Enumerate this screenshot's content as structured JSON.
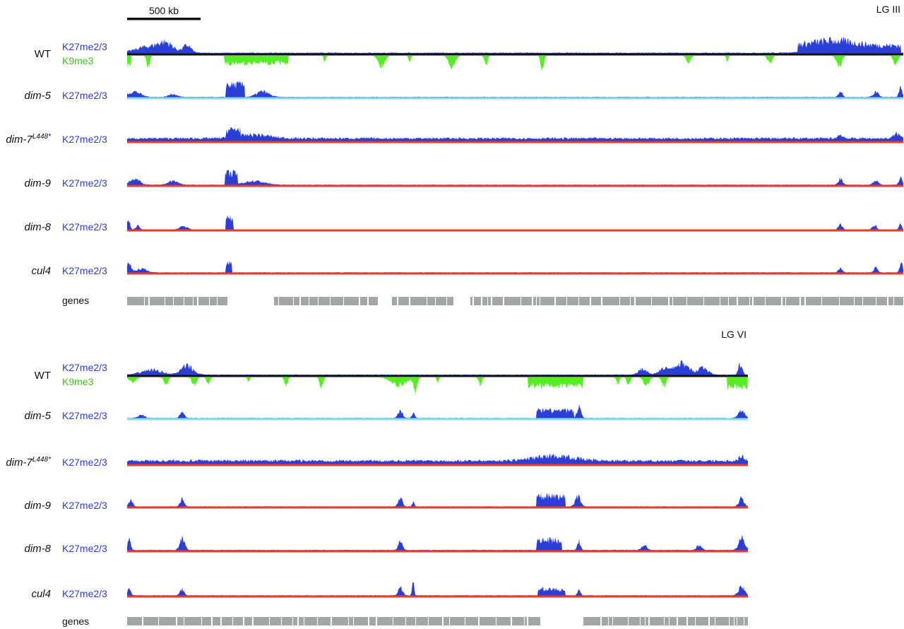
{
  "figure": {
    "scale_bar_label": "500 kb",
    "colors": {
      "k27": "#2b3fd6",
      "k9": "#55ee22",
      "baseline_wt": "#111111",
      "baseline_dim5": "#86d8f2",
      "baseline_red": "#ef3a2a",
      "genes": "#a2a8a5",
      "label_black": "#111111"
    },
    "panels": [
      {
        "name": "LG III",
        "tracks": [
          {
            "strain": "WT",
            "superscript": "",
            "marks": [
              "K27me2/3",
              "K9me3"
            ],
            "baseline": "wt"
          },
          {
            "strain": "dim-5",
            "superscript": "",
            "marks": [
              "K27me2/3"
            ],
            "baseline": "dim5"
          },
          {
            "strain": "dim-7",
            "superscript": "L448*",
            "marks": [
              "K27me2/3"
            ],
            "baseline": "red"
          },
          {
            "strain": "dim-9",
            "superscript": "",
            "marks": [
              "K27me2/3"
            ],
            "baseline": "red"
          },
          {
            "strain": "dim-8",
            "superscript": "",
            "marks": [
              "K27me2/3"
            ],
            "baseline": "red"
          },
          {
            "strain": "cul4",
            "superscript": "",
            "marks": [
              "K27me2/3"
            ],
            "baseline": "red"
          }
        ],
        "genes_label": "genes"
      },
      {
        "name": "LG VI",
        "tracks": [
          {
            "strain": "WT",
            "superscript": "",
            "marks": [
              "K27me2/3",
              "K9me3"
            ],
            "baseline": "wt"
          },
          {
            "strain": "dim-5",
            "superscript": "",
            "marks": [
              "K27me2/3"
            ],
            "baseline": "dim5"
          },
          {
            "strain": "dim-7",
            "superscript": "L448*",
            "marks": [
              "K27me2/3"
            ],
            "baseline": "red"
          },
          {
            "strain": "dim-9",
            "superscript": "",
            "marks": [
              "K27me2/3"
            ],
            "baseline": "red"
          },
          {
            "strain": "dim-8",
            "superscript": "",
            "marks": [
              "K27me2/3"
            ],
            "baseline": "red"
          },
          {
            "strain": "cul4",
            "superscript": "",
            "marks": [
              "K27me2/3"
            ],
            "baseline": "red"
          }
        ],
        "genes_label": "genes"
      }
    ]
  }
}
